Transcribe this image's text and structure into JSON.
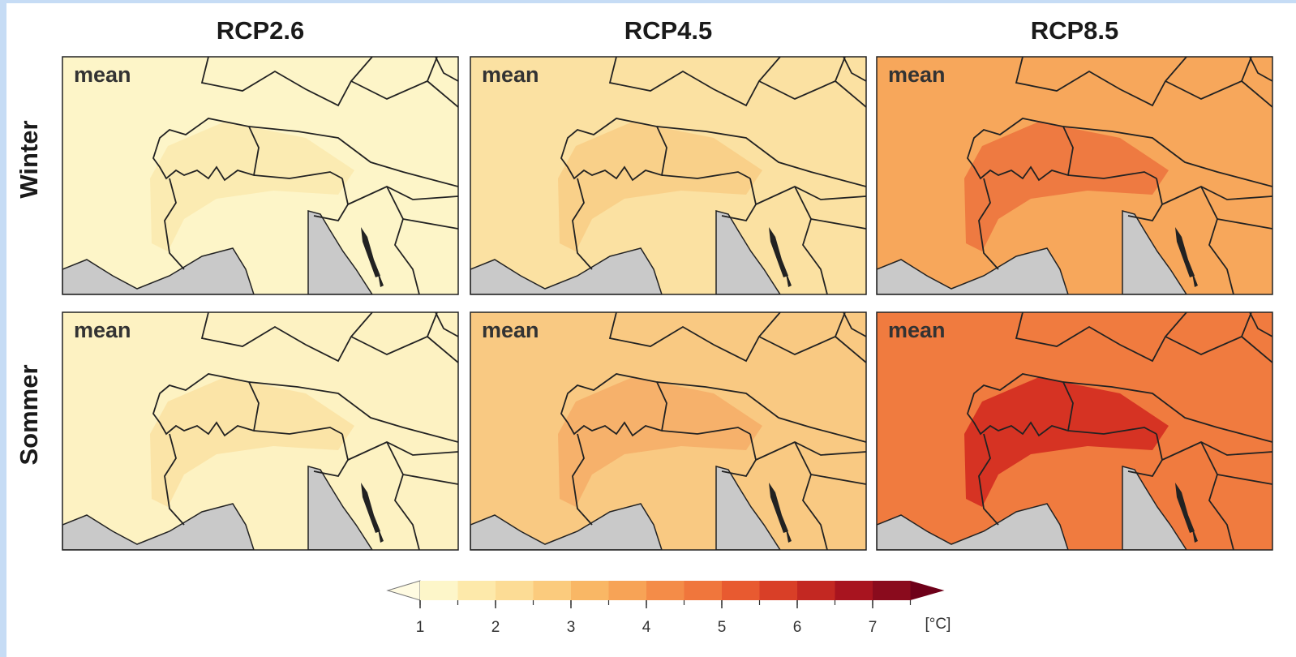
{
  "columns": [
    "RCP2.6",
    "RCP4.5",
    "RCP8.5"
  ],
  "rows": [
    "Winter",
    "Sommer"
  ],
  "panels": [
    {
      "label": "mean",
      "fill": "#fdf5c8",
      "accent": "#fbebb2"
    },
    {
      "label": "mean",
      "fill": "#fbe1a2",
      "accent": "#f9d089"
    },
    {
      "label": "mean",
      "fill": "#f7a75b",
      "accent": "#ee7a41"
    },
    {
      "label": "mean",
      "fill": "#fdf2c2",
      "accent": "#fbe4a7"
    },
    {
      "label": "mean",
      "fill": "#f9c982",
      "accent": "#f6b16b"
    },
    {
      "label": "mean",
      "fill": "#f07b3f",
      "accent": "#d63323"
    }
  ],
  "colorbar": {
    "ticks": [
      1,
      2,
      3,
      4,
      5,
      6,
      7
    ],
    "unit": "[°C]",
    "bins": [
      1,
      1.5,
      2,
      2.5,
      3,
      3.5,
      4,
      4.5,
      5,
      5.5,
      6,
      6.5,
      7,
      7.5
    ],
    "colors": [
      "#fdf6c9",
      "#fde9aa",
      "#fcdc95",
      "#fbcb7d",
      "#f9b765",
      "#f7a356",
      "#f48c48",
      "#f0763c",
      "#e85a30",
      "#d93f27",
      "#c32822",
      "#a8141f",
      "#8a0b1d"
    ],
    "under_color": "#fffbe2",
    "over_color": "#6e0019"
  }
}
